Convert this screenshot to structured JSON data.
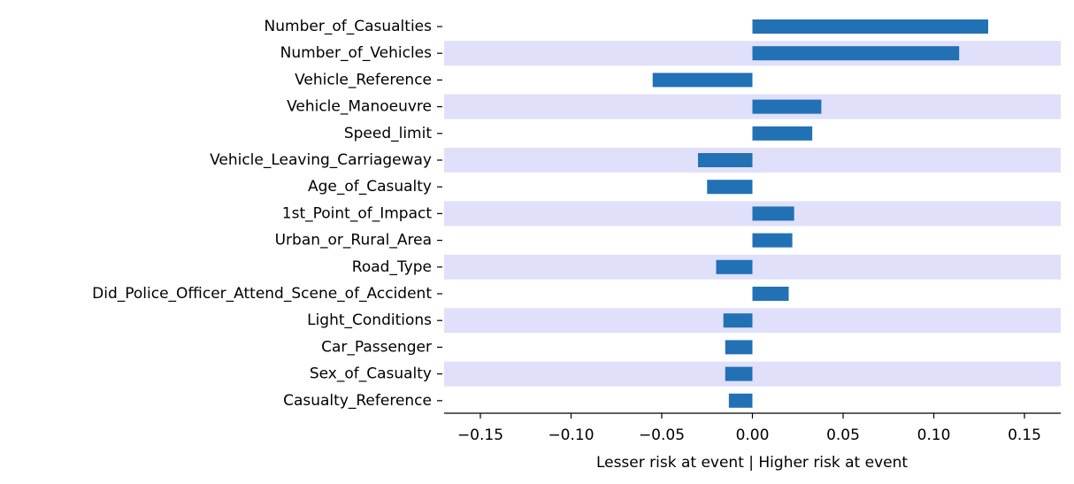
{
  "chart_data": {
    "type": "bar",
    "orientation": "horizontal",
    "categories": [
      "Number_of_Casualties",
      "Number_of_Vehicles",
      "Vehicle_Reference",
      "Vehicle_Manoeuvre",
      "Speed_limit",
      "Vehicle_Leaving_Carriageway",
      "Age_of_Casualty",
      "1st_Point_of_Impact",
      "Urban_or_Rural_Area",
      "Road_Type",
      "Did_Police_Officer_Attend_Scene_of_Accident",
      "Light_Conditions",
      "Car_Passenger",
      "Sex_of_Casualty",
      "Casualty_Reference"
    ],
    "values": [
      0.13,
      0.114,
      -0.055,
      0.038,
      0.033,
      -0.03,
      -0.025,
      0.023,
      0.022,
      -0.02,
      0.02,
      -0.016,
      -0.015,
      -0.015,
      -0.013
    ],
    "xlabel": "Lesser risk at event | Higher risk at event",
    "ylabel": "",
    "title": "",
    "xlim": [
      -0.17,
      0.17
    ],
    "xticks": [
      -0.15,
      -0.1,
      -0.05,
      0.0,
      0.05,
      0.1,
      0.15
    ],
    "xtick_labels": [
      "−0.15",
      "−0.10",
      "−0.05",
      "0.00",
      "0.05",
      "0.10",
      "0.15"
    ],
    "grid": false,
    "legend": "none",
    "alternating_row_bands": true,
    "colors": {
      "bar": "#2271b5",
      "band": "#e0e0fb",
      "axis": "#000000"
    }
  }
}
